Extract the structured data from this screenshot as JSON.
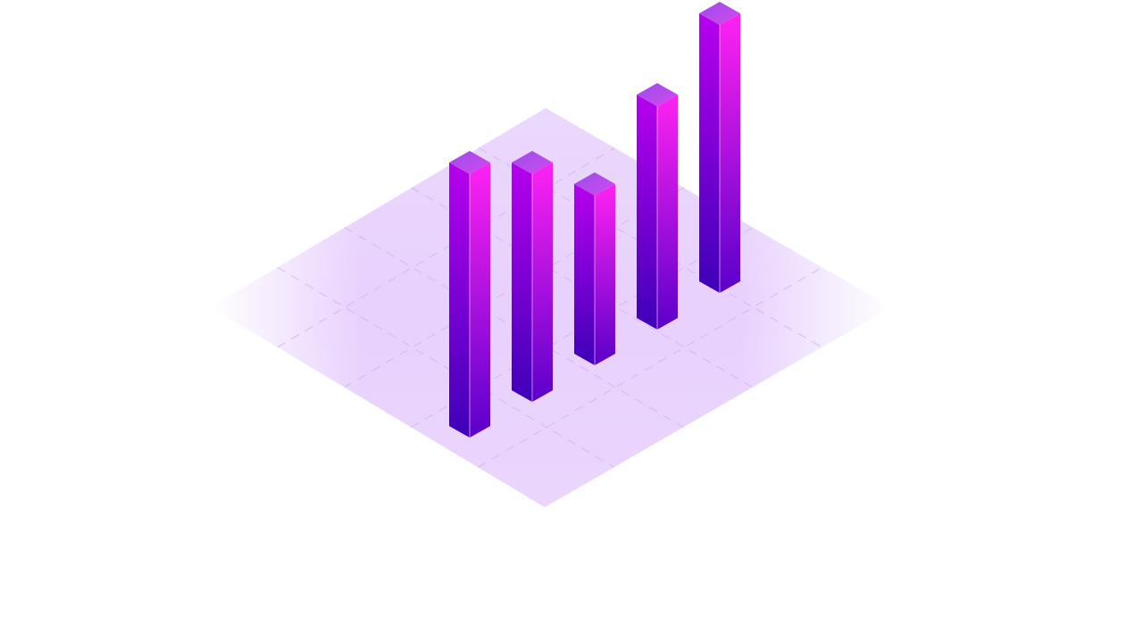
{
  "chart_data": {
    "type": "bar",
    "style": "3d-isometric",
    "categories": [
      "",
      "",
      "",
      "",
      ""
    ],
    "values": [
      2.95,
      2.55,
      1.9,
      2.5,
      3.0
    ],
    "ylim": [
      0,
      3.2
    ],
    "grid": true,
    "legend": "none",
    "title": "",
    "xlabel": "",
    "ylabel": ""
  },
  "colors": {
    "background": "#ffffff",
    "floor": "#e7cffd",
    "grid_line": "#d2b4ee",
    "bar_front_top": "#ff22f2",
    "bar_front_bottom": "#5a00ca",
    "bar_side_top": "#b700ee",
    "bar_side_bottom": "#3e00b8",
    "bar_cap": "#b044e6"
  }
}
